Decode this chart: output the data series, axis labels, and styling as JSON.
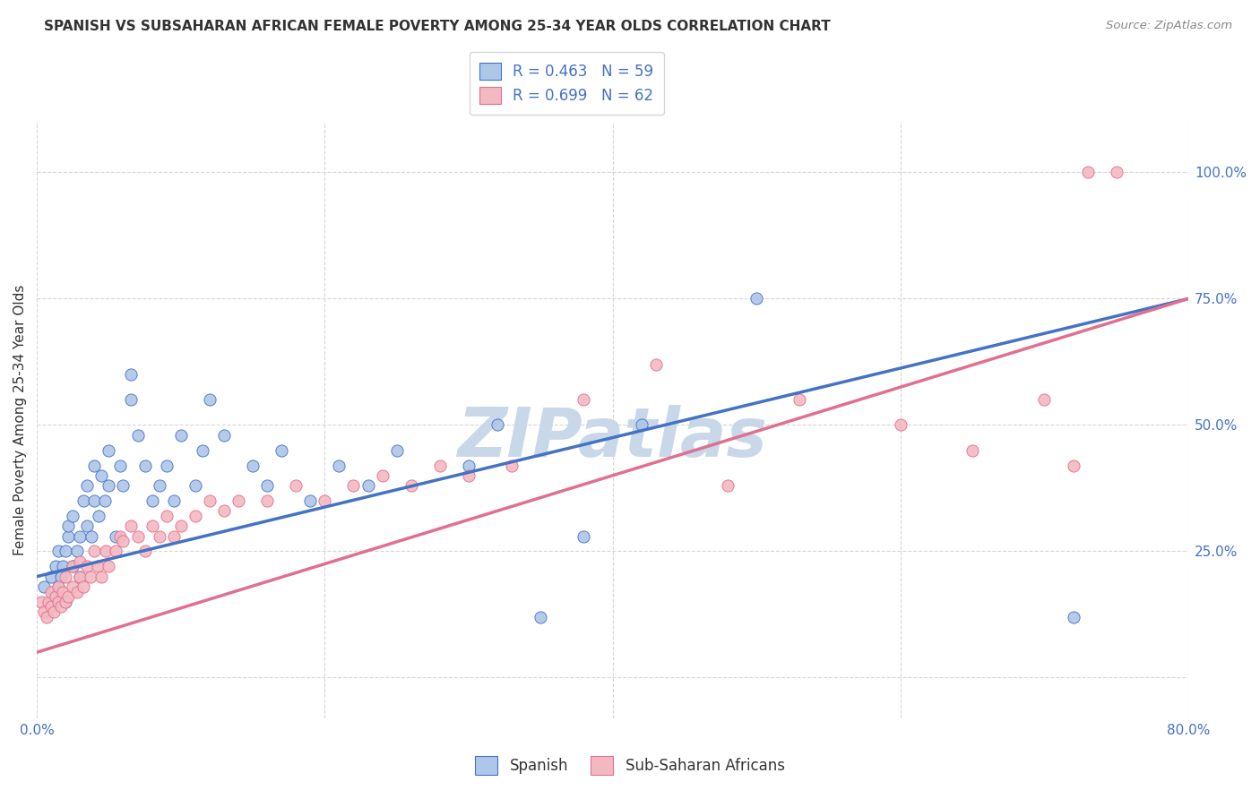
{
  "title": "SPANISH VS SUBSAHARAN AFRICAN FEMALE POVERTY AMONG 25-34 YEAR OLDS CORRELATION CHART",
  "source": "Source: ZipAtlas.com",
  "ylabel": "Female Poverty Among 25-34 Year Olds",
  "xlim": [
    0.0,
    0.8
  ],
  "ylim": [
    -0.08,
    1.1
  ],
  "spanish_color": "#aec6e8",
  "african_color": "#f4b8c1",
  "spanish_line_color": "#4472c4",
  "african_line_color": "#e07090",
  "legend_R_spanish": "R = 0.463",
  "legend_N_spanish": "N = 59",
  "legend_R_african": "R = 0.699",
  "legend_N_african": "N = 62",
  "spanish_x": [
    0.005,
    0.01,
    0.01,
    0.012,
    0.013,
    0.015,
    0.015,
    0.017,
    0.018,
    0.02,
    0.02,
    0.022,
    0.022,
    0.025,
    0.025,
    0.028,
    0.03,
    0.03,
    0.032,
    0.035,
    0.035,
    0.038,
    0.04,
    0.04,
    0.043,
    0.045,
    0.047,
    0.05,
    0.05,
    0.055,
    0.058,
    0.06,
    0.065,
    0.065,
    0.07,
    0.075,
    0.08,
    0.085,
    0.09,
    0.095,
    0.1,
    0.11,
    0.115,
    0.12,
    0.13,
    0.15,
    0.16,
    0.17,
    0.19,
    0.21,
    0.23,
    0.25,
    0.3,
    0.32,
    0.35,
    0.38,
    0.42,
    0.5,
    0.72
  ],
  "spanish_y": [
    0.18,
    0.15,
    0.2,
    0.17,
    0.22,
    0.18,
    0.25,
    0.2,
    0.22,
    0.15,
    0.25,
    0.28,
    0.3,
    0.22,
    0.32,
    0.25,
    0.2,
    0.28,
    0.35,
    0.3,
    0.38,
    0.28,
    0.35,
    0.42,
    0.32,
    0.4,
    0.35,
    0.38,
    0.45,
    0.28,
    0.42,
    0.38,
    0.55,
    0.6,
    0.48,
    0.42,
    0.35,
    0.38,
    0.42,
    0.35,
    0.48,
    0.38,
    0.45,
    0.55,
    0.48,
    0.42,
    0.38,
    0.45,
    0.35,
    0.42,
    0.38,
    0.45,
    0.42,
    0.5,
    0.12,
    0.28,
    0.5,
    0.75,
    0.12
  ],
  "african_x": [
    0.003,
    0.005,
    0.007,
    0.008,
    0.01,
    0.01,
    0.012,
    0.013,
    0.015,
    0.015,
    0.017,
    0.018,
    0.02,
    0.02,
    0.022,
    0.025,
    0.025,
    0.028,
    0.03,
    0.03,
    0.032,
    0.035,
    0.037,
    0.04,
    0.042,
    0.045,
    0.048,
    0.05,
    0.055,
    0.058,
    0.06,
    0.065,
    0.07,
    0.075,
    0.08,
    0.085,
    0.09,
    0.095,
    0.1,
    0.11,
    0.12,
    0.13,
    0.14,
    0.16,
    0.18,
    0.2,
    0.22,
    0.24,
    0.26,
    0.28,
    0.3,
    0.33,
    0.38,
    0.43,
    0.48,
    0.53,
    0.6,
    0.65,
    0.7,
    0.72,
    0.73,
    0.75
  ],
  "african_y": [
    0.15,
    0.13,
    0.12,
    0.15,
    0.14,
    0.17,
    0.13,
    0.16,
    0.15,
    0.18,
    0.14,
    0.17,
    0.15,
    0.2,
    0.16,
    0.18,
    0.22,
    0.17,
    0.2,
    0.23,
    0.18,
    0.22,
    0.2,
    0.25,
    0.22,
    0.2,
    0.25,
    0.22,
    0.25,
    0.28,
    0.27,
    0.3,
    0.28,
    0.25,
    0.3,
    0.28,
    0.32,
    0.28,
    0.3,
    0.32,
    0.35,
    0.33,
    0.35,
    0.35,
    0.38,
    0.35,
    0.38,
    0.4,
    0.38,
    0.42,
    0.4,
    0.42,
    0.55,
    0.62,
    0.38,
    0.55,
    0.5,
    0.45,
    0.55,
    0.42,
    1.0,
    1.0
  ],
  "blue_line_x0": 0.0,
  "blue_line_y0": 0.2,
  "blue_line_x1": 0.8,
  "blue_line_y1": 0.75,
  "pink_line_x0": 0.0,
  "pink_line_y0": 0.05,
  "pink_line_x1": 0.8,
  "pink_line_y1": 0.75,
  "background_color": "#ffffff",
  "grid_color": "#cccccc",
  "title_color": "#333333",
  "tick_label_color": "#4472c4",
  "watermark_color": "#c8d8e8"
}
